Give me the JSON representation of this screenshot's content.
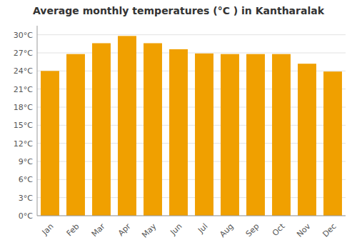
{
  "chart_data": {
    "type": "bar",
    "title": "Average monthly temperatures (°C ) in Kantharalak",
    "categories": [
      "Jan",
      "Feb",
      "Mar",
      "Apr",
      "May",
      "Jun",
      "Jul",
      "Aug",
      "Sep",
      "Oct",
      "Nov",
      "Dec"
    ],
    "values": [
      24.0,
      26.8,
      28.6,
      29.8,
      28.6,
      27.6,
      26.9,
      26.8,
      26.8,
      26.8,
      25.2,
      23.9
    ],
    "color": "#F0A000",
    "ylim": [
      0,
      31.5
    ],
    "yticks": [
      {
        "value": 0,
        "label": "0°C"
      },
      {
        "value": 3,
        "label": "3°C"
      },
      {
        "value": 6,
        "label": "6°C"
      },
      {
        "value": 9,
        "label": "9°C"
      },
      {
        "value": 12,
        "label": "12°C"
      },
      {
        "value": 15,
        "label": "15°C"
      },
      {
        "value": 18,
        "label": "18°C"
      },
      {
        "value": 21,
        "label": "21°C"
      },
      {
        "value": 24,
        "label": "24°C"
      },
      {
        "value": 27,
        "label": "27°C"
      },
      {
        "value": 30,
        "label": "30°C"
      }
    ],
    "grid": true
  }
}
